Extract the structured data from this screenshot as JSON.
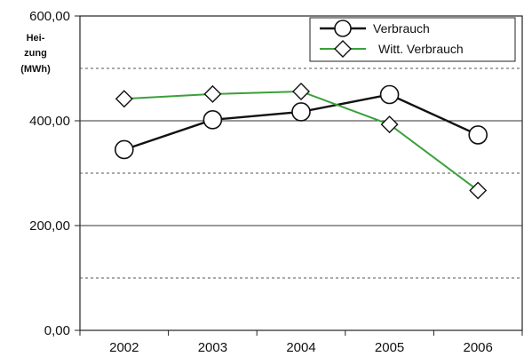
{
  "chart_data": {
    "type": "line",
    "categories": [
      "2002",
      "2003",
      "2004",
      "2005",
      "2006"
    ],
    "series": [
      {
        "name": "Verbrauch",
        "values": [
          345,
          402,
          417,
          450,
          373
        ],
        "color": "#111111",
        "marker": "circle"
      },
      {
        "name": "Witt. Verbrauch",
        "values": [
          442,
          451,
          456,
          393,
          267
        ],
        "color": "#3aa03a",
        "marker": "diamond"
      }
    ],
    "ylabel_lines": [
      "Hei-",
      "zung",
      "(MWh)"
    ],
    "ylim": [
      0,
      600
    ],
    "y_ticks": [
      "0,00",
      "200,00",
      "400,00",
      "600,00"
    ],
    "y_major_gridlines": [
      200,
      400,
      600
    ],
    "y_minor_gridlines_dashed": [
      100,
      300,
      500
    ],
    "legend_position": "top-right"
  }
}
